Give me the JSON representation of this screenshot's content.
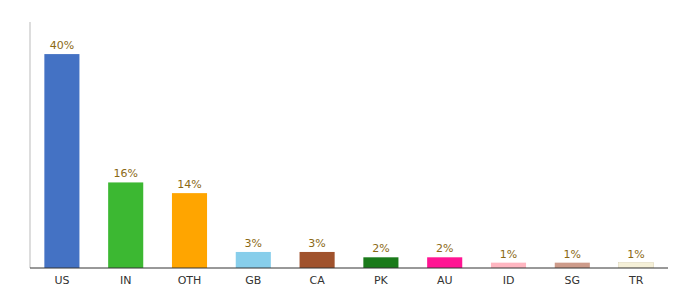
{
  "chart_data": {
    "type": "bar",
    "categories": [
      "US",
      "IN",
      "OTH",
      "GB",
      "CA",
      "PK",
      "AU",
      "ID",
      "SG",
      "TR"
    ],
    "values": [
      40,
      16,
      14,
      3,
      3,
      2,
      2,
      1,
      1,
      1
    ],
    "value_labels": [
      "40%",
      "16%",
      "14%",
      "3%",
      "3%",
      "2%",
      "2%",
      "1%",
      "1%",
      "1%"
    ],
    "colors": [
      "#4472c4",
      "#3cb832",
      "#ffa500",
      "#87ceeb",
      "#a0522d",
      "#1a7a1a",
      "#ff1493",
      "#ffb6c1",
      "#cd9b8a",
      "#f5f0d8"
    ],
    "ylim": [
      0,
      46
    ],
    "data_labels": true,
    "tick_labels": "x",
    "grid": false
  }
}
